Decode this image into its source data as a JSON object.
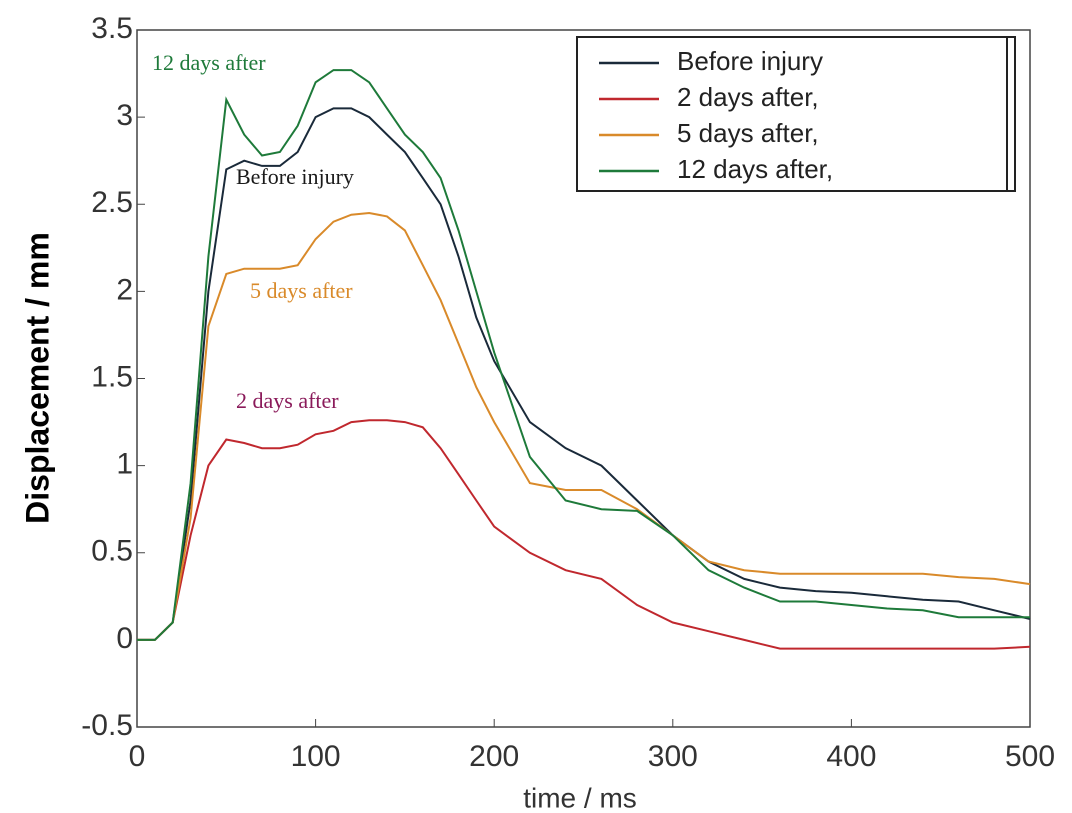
{
  "chart_data": {
    "type": "line",
    "x_label": "time / ms",
    "y_label": "Displacement / mm",
    "x": [
      0,
      10,
      20,
      30,
      40,
      50,
      60,
      70,
      80,
      90,
      100,
      110,
      120,
      130,
      140,
      150,
      160,
      170,
      180,
      190,
      200,
      220,
      240,
      260,
      280,
      300,
      320,
      340,
      360,
      380,
      400,
      420,
      440,
      460,
      480,
      500
    ],
    "series": [
      {
        "name": "Before injury",
        "color": "#1a2a3a",
        "values": [
          0,
          0,
          0.1,
          0.8,
          2.0,
          2.7,
          2.75,
          2.72,
          2.72,
          2.8,
          3.0,
          3.05,
          3.05,
          3.0,
          2.9,
          2.8,
          2.65,
          2.5,
          2.2,
          1.85,
          1.6,
          1.25,
          1.1,
          1.0,
          0.8,
          0.6,
          0.45,
          0.35,
          0.3,
          0.28,
          0.27,
          0.25,
          0.23,
          0.22,
          0.17,
          0.12
        ]
      },
      {
        "name": "2 days after,",
        "color": "#c0282e",
        "values": [
          0,
          0,
          0.1,
          0.6,
          1.0,
          1.15,
          1.13,
          1.1,
          1.1,
          1.12,
          1.18,
          1.2,
          1.25,
          1.26,
          1.26,
          1.25,
          1.22,
          1.1,
          0.95,
          0.8,
          0.65,
          0.5,
          0.4,
          0.35,
          0.2,
          0.1,
          0.05,
          0,
          -0.05,
          -0.05,
          -0.05,
          -0.05,
          -0.05,
          -0.05,
          -0.05,
          -0.04
        ]
      },
      {
        "name": "5 days after,",
        "color": "#d98a2a",
        "values": [
          0,
          0,
          0.1,
          0.7,
          1.8,
          2.1,
          2.13,
          2.13,
          2.13,
          2.15,
          2.3,
          2.4,
          2.44,
          2.45,
          2.43,
          2.35,
          2.15,
          1.95,
          1.7,
          1.45,
          1.25,
          0.9,
          0.86,
          0.86,
          0.75,
          0.6,
          0.45,
          0.4,
          0.38,
          0.38,
          0.38,
          0.38,
          0.38,
          0.36,
          0.35,
          0.32
        ]
      },
      {
        "name": "12 days after,",
        "color": "#1e7a3a",
        "values": [
          0,
          0,
          0.1,
          0.9,
          2.2,
          3.1,
          2.9,
          2.78,
          2.8,
          2.95,
          3.2,
          3.27,
          3.27,
          3.2,
          3.05,
          2.9,
          2.8,
          2.65,
          2.35,
          2.0,
          1.65,
          1.05,
          0.8,
          0.75,
          0.74,
          0.6,
          0.4,
          0.3,
          0.22,
          0.22,
          0.2,
          0.18,
          0.17,
          0.13,
          0.13,
          0.13
        ]
      }
    ],
    "annotations": [
      {
        "text": "12 days after",
        "color": "#1e7a3a"
      },
      {
        "text": "Before injury",
        "color": "#1a1a1a"
      },
      {
        "text": "5 days after",
        "color": "#d98a2a"
      },
      {
        "text": "2 days after",
        "color": "#8a1a5a"
      }
    ],
    "xlim": [
      0,
      500
    ],
    "xticks": [
      0,
      100,
      200,
      300,
      400,
      500
    ],
    "ylim": [
      -0.5,
      3.5
    ],
    "yticks": [
      -0.5,
      0,
      0.5,
      1,
      1.5,
      2,
      2.5,
      3,
      3.5
    ],
    "grid": false,
    "legend": "upper right"
  }
}
